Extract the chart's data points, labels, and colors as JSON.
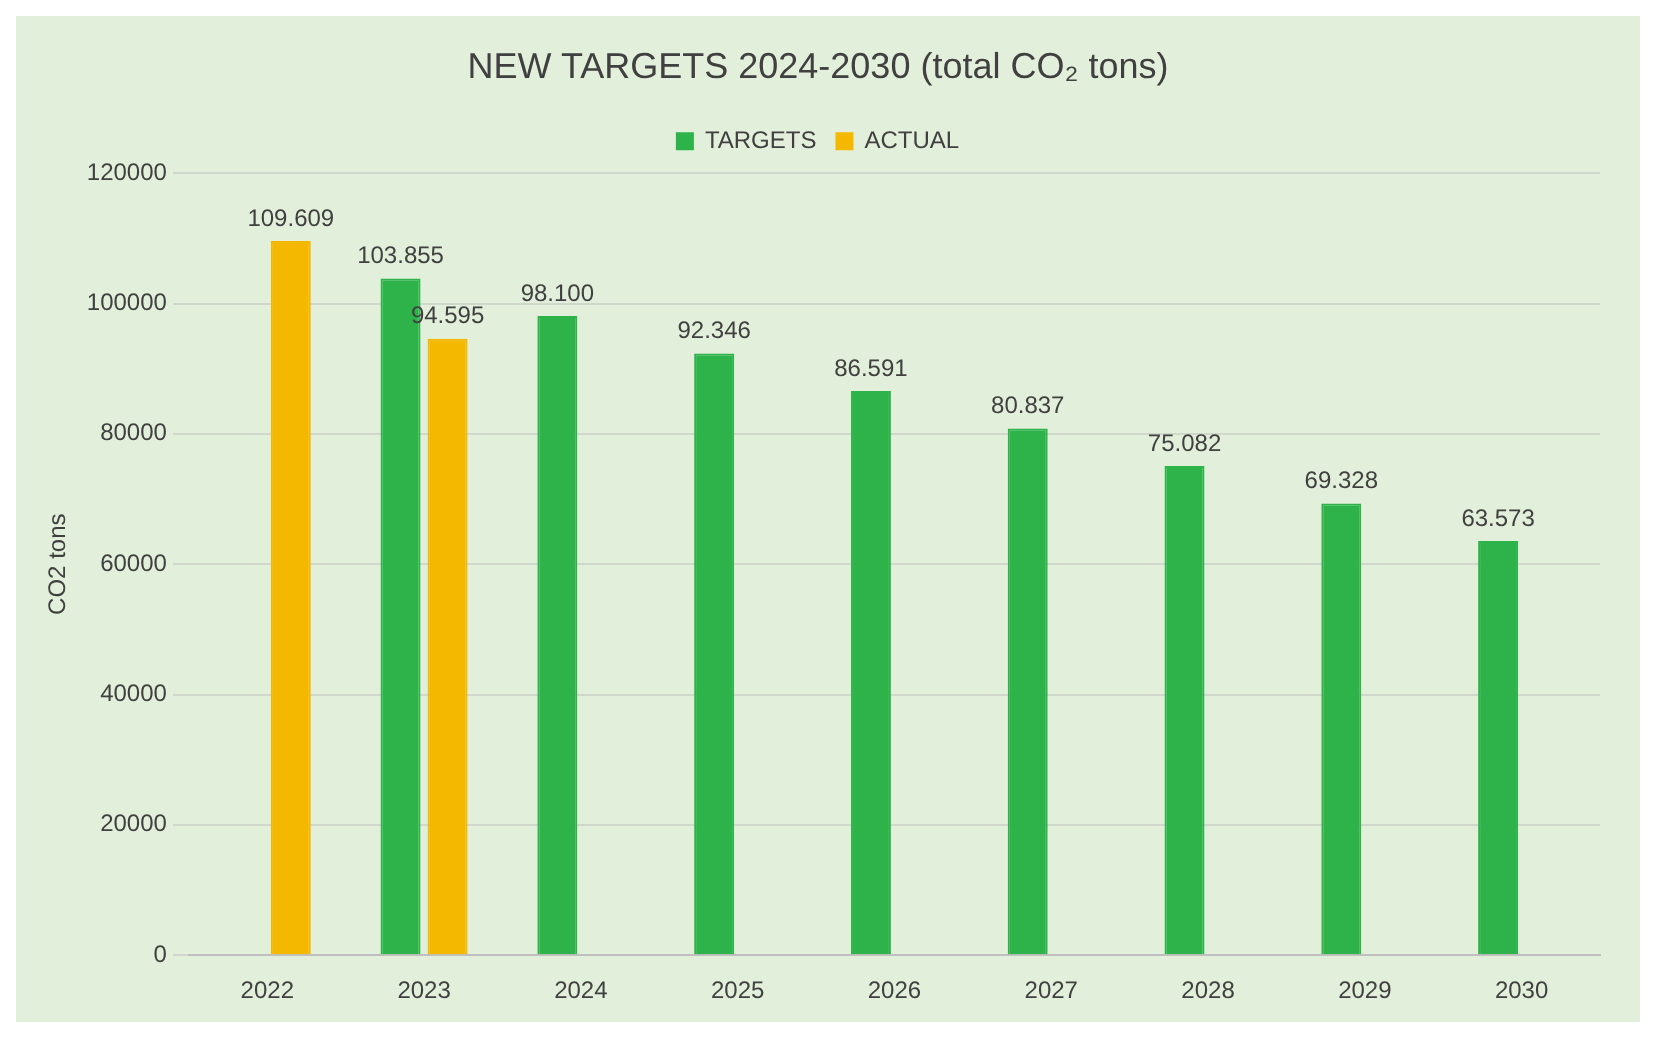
{
  "chart_data": {
    "type": "bar",
    "title": "NEW TARGETS 2024-2030 (total CO₂ tons)",
    "ylabel": "CO2 tons",
    "categories": [
      "2022",
      "2023",
      "2024",
      "2025",
      "2026",
      "2027",
      "2028",
      "2029",
      "2030"
    ],
    "series": [
      {
        "name": "TARGETS",
        "color": "#2db34a",
        "values": [
          null,
          103855,
          98100,
          92346,
          86591,
          80837,
          75082,
          69328,
          63573
        ],
        "value_labels": [
          null,
          "103.855",
          "98.100",
          "92.346",
          "86.591",
          "80.837",
          "75.082",
          "69.328",
          "63.573"
        ]
      },
      {
        "name": "ACTUAL",
        "color": "#f5b800",
        "values": [
          109609,
          94595,
          null,
          null,
          null,
          null,
          null,
          null,
          null
        ],
        "value_labels": [
          "109.609",
          "94.595",
          null,
          null,
          null,
          null,
          null,
          null,
          null
        ]
      }
    ],
    "ylim": [
      0,
      120000
    ],
    "yticks": [
      0,
      20000,
      40000,
      60000,
      80000,
      100000,
      120000
    ],
    "grid": "y",
    "legend": "top"
  }
}
